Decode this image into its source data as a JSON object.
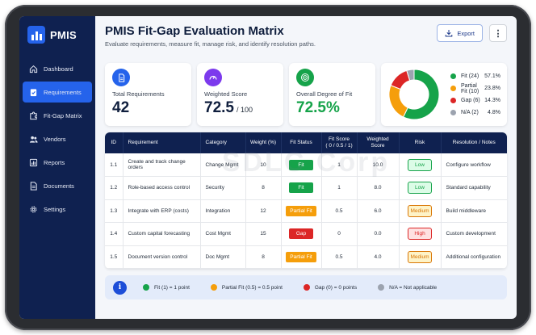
{
  "app": {
    "name": "PMIS"
  },
  "sidebar": {
    "items": [
      {
        "label": "Dashboard",
        "icon": "home-icon"
      },
      {
        "label": "Requirements",
        "icon": "clipboard-check-icon",
        "active": true
      },
      {
        "label": "Fit-Gap Matrix",
        "icon": "puzzle-icon"
      },
      {
        "label": "Vendors",
        "icon": "users-icon"
      },
      {
        "label": "Reports",
        "icon": "chart-icon"
      },
      {
        "label": "Documents",
        "icon": "document-icon"
      },
      {
        "label": "Settings",
        "icon": "gear-icon"
      }
    ]
  },
  "header": {
    "title": "PMIS Fit-Gap Evaluation Matrix",
    "subtitle": "Evaluate requirements, measure fit, manage risk, and identify resolution paths.",
    "export_label": "Export",
    "more_label": "⋮"
  },
  "kpis": {
    "total": {
      "label": "Total Requirements",
      "value": "42"
    },
    "weighted": {
      "label": "Weighted Score",
      "value": "72.5",
      "suffix": "/ 100"
    },
    "fit": {
      "label": "Overall Degree of Fit",
      "value": "72.5%"
    }
  },
  "donut": {
    "segments": [
      {
        "label": "Fit (24)",
        "pct_label": "57.1%",
        "value": 57.1,
        "color": "#16a34a"
      },
      {
        "label": "Partial Fit (10)",
        "pct_label": "23.8%",
        "value": 23.8,
        "color": "#f59e0b"
      },
      {
        "label": "Gap (6)",
        "pct_label": "14.3%",
        "value": 14.3,
        "color": "#dc2626"
      },
      {
        "label": "N/A (2)",
        "pct_label": "4.8%",
        "value": 4.8,
        "color": "#9ca3af"
      }
    ]
  },
  "table": {
    "headers": {
      "id": "ID",
      "requirement": "Requirement",
      "category": "Category",
      "weight": "Weight (%)",
      "status": "Fit Status",
      "score_line1": "Fit Score",
      "score_line2": "( 0 / 0.5 / 1)",
      "weighted": "Weighted Score",
      "risk": "Risk",
      "notes": "Resolution / Notes"
    },
    "rows": [
      {
        "id": "1.1",
        "requirement": "Create and track change orders",
        "category": "Change Mgmt",
        "weight": "10",
        "status": "Fit",
        "status_color": "#16a34a",
        "score": "1",
        "weighted": "10.0",
        "risk": "Low",
        "risk_color": "#16a34a",
        "risk_bg": "#dcfce7",
        "notes": "Configure workflow"
      },
      {
        "id": "1.2",
        "requirement": "Role-based access control",
        "category": "Security",
        "weight": "8",
        "status": "Fit",
        "status_color": "#16a34a",
        "score": "1",
        "weighted": "8.0",
        "risk": "Low",
        "risk_color": "#16a34a",
        "risk_bg": "#dcfce7",
        "notes": "Standard capability"
      },
      {
        "id": "1.3",
        "requirement": "Integrate with ERP (costs)",
        "category": "Integration",
        "weight": "12",
        "status": "Partial Fit",
        "status_color": "#f59e0b",
        "score": "0.5",
        "weighted": "6.0",
        "risk": "Medium",
        "risk_color": "#d97706",
        "risk_bg": "#fef3c7",
        "notes": "Build middleware"
      },
      {
        "id": "1.4",
        "requirement": "Custom capital forecasting",
        "category": "Cost Mgmt",
        "weight": "15",
        "status": "Gap",
        "status_color": "#dc2626",
        "score": "0",
        "weighted": "0.0",
        "risk": "High",
        "risk_color": "#dc2626",
        "risk_bg": "#fee2e2",
        "notes": "Custom development"
      },
      {
        "id": "1.5",
        "requirement": "Document version control",
        "category": "Doc Mgmt",
        "weight": "8",
        "status": "Partial Fit",
        "status_color": "#f59e0b",
        "score": "0.5",
        "weighted": "4.0",
        "risk": "Medium",
        "risk_color": "#d97706",
        "risk_bg": "#fef3c7",
        "notes": "Additional configuration"
      }
    ]
  },
  "watermark": "SDLC Corp",
  "footer": {
    "items": [
      {
        "label": "Fit (1) = 1 point",
        "color": "#16a34a"
      },
      {
        "label": "Partial Fit (0.5) = 0.5 point",
        "color": "#f59e0b"
      },
      {
        "label": "Gap (0) = 0 points",
        "color": "#dc2626"
      },
      {
        "label": "N/A = Not applicable",
        "color": "#9ca3af"
      }
    ]
  }
}
